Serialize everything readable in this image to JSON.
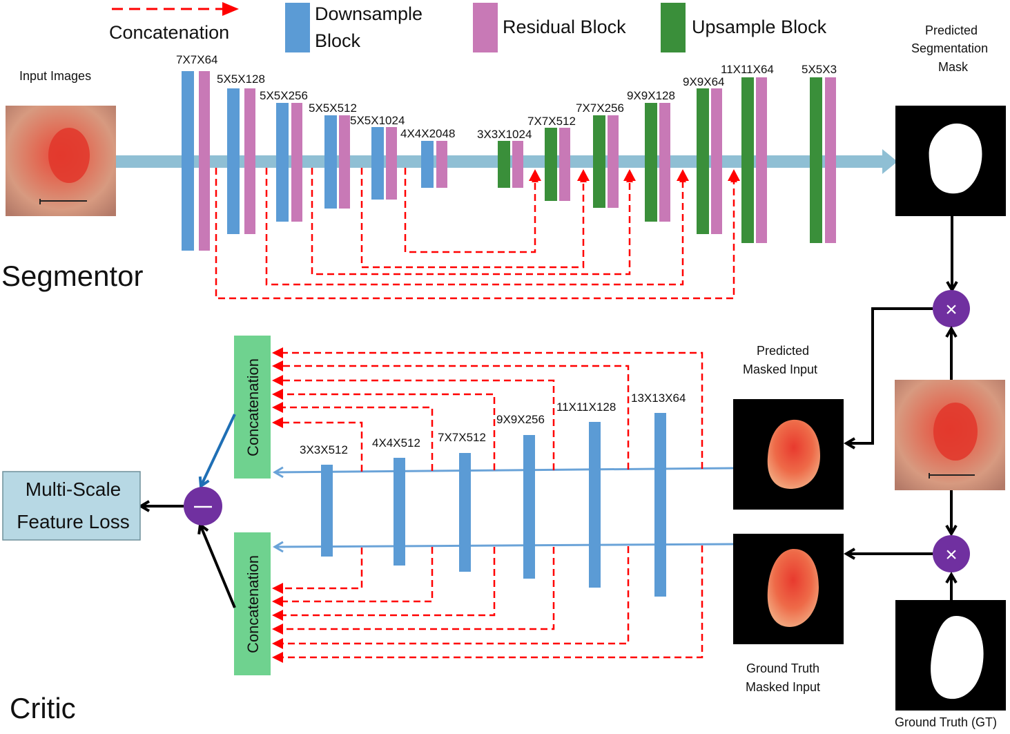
{
  "legend": {
    "concatenation": "Concatenation",
    "downsample": [
      "Downsample",
      "Block"
    ],
    "residual": "Residual Block",
    "upsample": "Upsample Block"
  },
  "colors": {
    "downsample": "#5b9bd5",
    "residual": "#c879b6",
    "upsample": "#3a8f3a",
    "arrow_main": "#8fbfd4",
    "dashed": "#ff0000",
    "concat_box": "#6fd28f",
    "loss_box": "#b7d8e4",
    "operator": "#7030a0",
    "critic_arrow": "#6aa3d8"
  },
  "segmentor": {
    "title": "Segmentor",
    "input_label": "Input Images",
    "output_label": [
      "Predicted",
      "Segmentation",
      "Mask"
    ],
    "layers": [
      "7X7X64",
      "5X5X128",
      "5X5X256",
      "5X5X512",
      "5X5X1024",
      "4X4X2048",
      "3X3X1024",
      "7X7X512",
      "7X7X256",
      "9X9X128",
      "9X9X64",
      "11X11X64",
      "5X5X3"
    ]
  },
  "critic": {
    "title": "Critic",
    "layers": [
      "3X3X512",
      "4X4X512",
      "7X7X512",
      "9X9X256",
      "11X11X128",
      "13X13X64"
    ],
    "concat_label": "Concatenation",
    "loss_label": [
      "Multi-Scale",
      "Feature Loss"
    ],
    "pred_masked_label": [
      "Predicted",
      "Masked Input"
    ],
    "gt_masked_label": [
      "Ground Truth",
      "Masked Input"
    ],
    "gt_label": "Ground Truth (GT)",
    "multiply_symbol": "×",
    "minus_symbol": "−"
  }
}
